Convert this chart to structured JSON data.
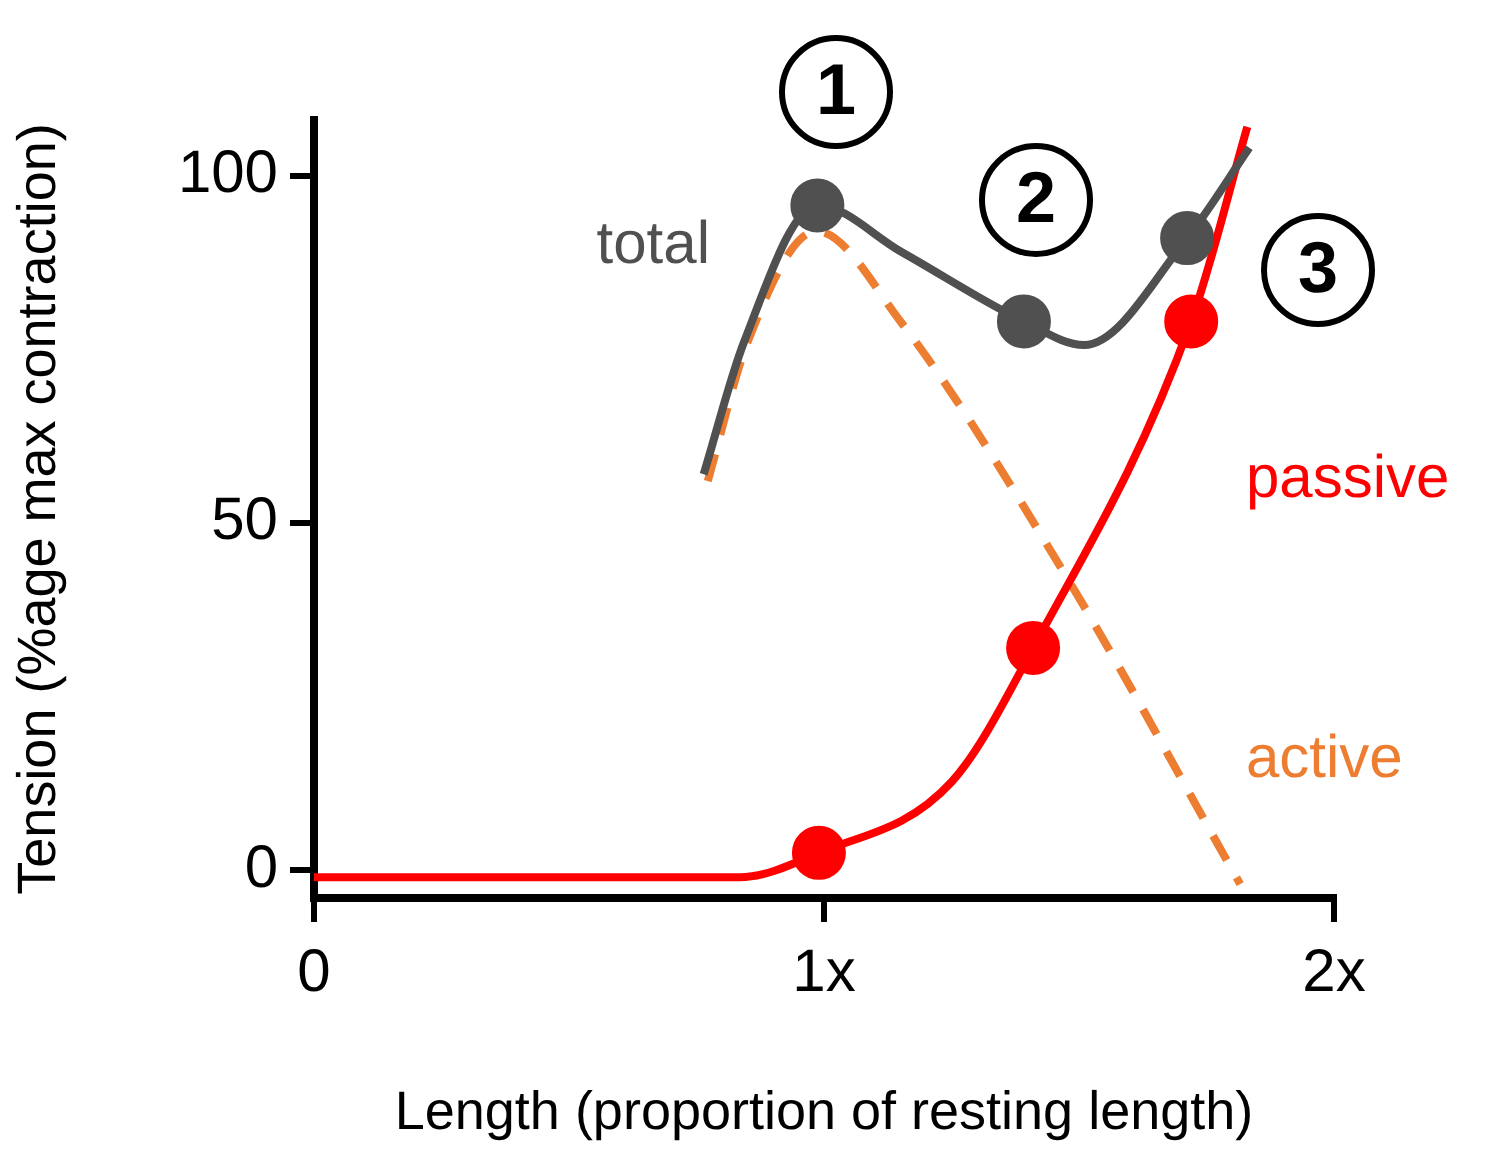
{
  "chart_data": {
    "type": "line",
    "xlabel": "Length (proportion of resting length)",
    "ylabel": "Tension (%age max contraction)",
    "xlim": [
      0,
      2
    ],
    "xticks": [
      0,
      {
        "value": 1,
        "label": "1x"
      },
      {
        "value": 2,
        "label": "2x"
      }
    ],
    "ylim": [
      -4,
      108
    ],
    "yticks": [
      0,
      50,
      100
    ],
    "grid": false,
    "legend": false,
    "line_style": "solid",
    "marker": "none",
    "series": [
      {
        "name": "total",
        "color": "#505050",
        "x": [
          0.764,
          0.843,
          0.987,
          1.152,
          1.392,
          1.51,
          1.712,
          1.834
        ],
        "values": [
          57,
          76,
          95.7,
          89,
          79,
          75.6,
          91,
          104
        ]
      },
      {
        "name": "passive",
        "color": "#ff0000",
        "x": [
          0,
          0.835,
          0.99,
          1.25,
          1.41,
          1.72,
          1.83
        ],
        "values": [
          -1,
          -1,
          2.5,
          12.7,
          32,
          79,
          107
        ]
      },
      {
        "name": "active",
        "color": "#ed7d31",
        "line_style": "dashed",
        "x": [
          0.772,
          0.85,
          0.985,
          1.15,
          1.474,
          1.816
        ],
        "values": [
          56,
          76,
          92,
          79,
          42.4,
          -2
        ]
      },
      {
        "type": "scatter",
        "marker": "circle",
        "color": "#505050",
        "x": [
          0.987,
          1.392,
          1.712
        ],
        "values": [
          95.7,
          79,
          91
        ]
      },
      {
        "type": "scatter",
        "marker": "circle",
        "color": "#ff0000",
        "x": [
          0.99,
          1.41,
          1.72
        ],
        "values": [
          2.5,
          32,
          79
        ]
      }
    ],
    "annotations": [
      "1",
      "2",
      "3"
    ]
  }
}
